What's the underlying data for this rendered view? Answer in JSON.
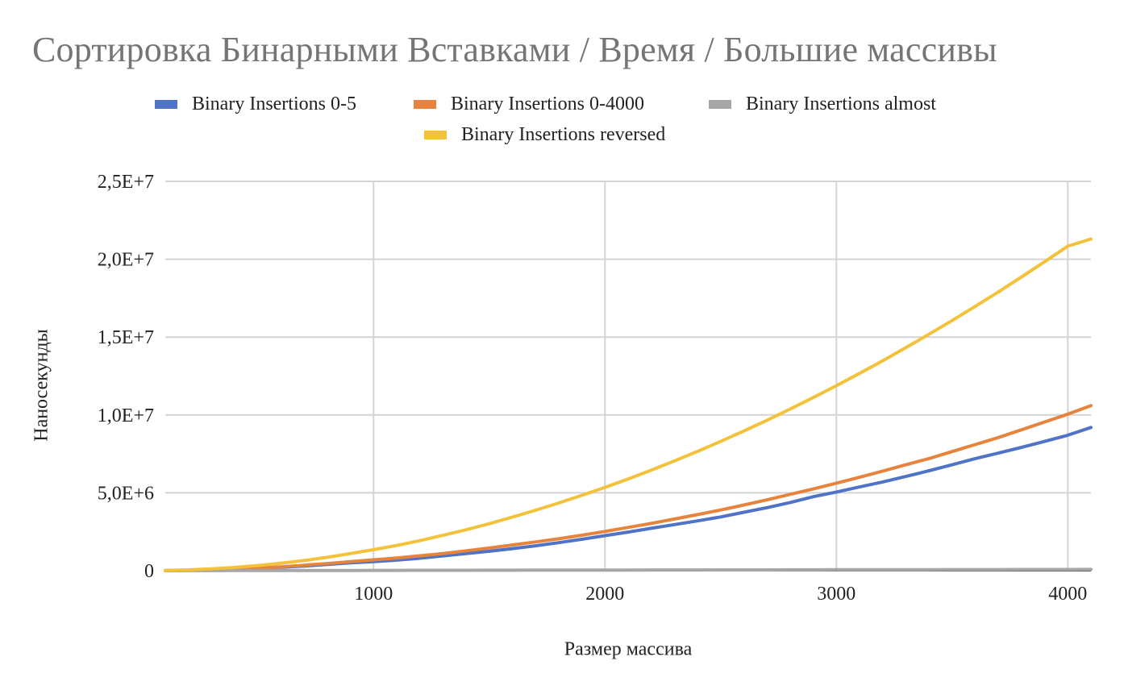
{
  "chart_data": {
    "type": "line",
    "title": "Сортировка Бинарными Вставками / Время / Большие массивы",
    "xlabel": "Размер массива",
    "ylabel": "Наносекунды",
    "xlim": [
      100,
      4100
    ],
    "ylim": [
      0,
      25000000
    ],
    "x_ticks": [
      1000,
      2000,
      3000,
      4000
    ],
    "x_tick_labels": [
      "1000",
      "2000",
      "3000",
      "4000"
    ],
    "y_ticks": [
      0,
      5000000,
      10000000,
      15000000,
      20000000,
      25000000
    ],
    "y_tick_labels": [
      "0",
      "5,0E+6",
      "1,0E+7",
      "1,5E+7",
      "2,0E+7",
      "2,5E+7"
    ],
    "grid": true,
    "legend_position": "top",
    "x": [
      100,
      200,
      300,
      400,
      500,
      600,
      700,
      800,
      900,
      1000,
      1100,
      1200,
      1300,
      1400,
      1500,
      1600,
      1700,
      1800,
      1900,
      2000,
      2100,
      2200,
      2300,
      2400,
      2500,
      2600,
      2700,
      2800,
      2900,
      3000,
      3100,
      3200,
      3300,
      3400,
      3500,
      3600,
      3700,
      3800,
      3900,
      4000,
      4100
    ],
    "series": [
      {
        "name": "Binary Insertions 0-5",
        "color": "#4f73c6",
        "values": [
          5000,
          20000,
          50000,
          100000,
          150000,
          220000,
          300000,
          400000,
          500000,
          580000,
          680000,
          800000,
          950000,
          1100000,
          1250000,
          1420000,
          1600000,
          1800000,
          2020000,
          2250000,
          2480000,
          2720000,
          2960000,
          3200000,
          3450000,
          3750000,
          4050000,
          4380000,
          4750000,
          5050000,
          5380000,
          5700000,
          6050000,
          6420000,
          6800000,
          7200000,
          7550000,
          7920000,
          8300000,
          8700000,
          9200000
        ]
      },
      {
        "name": "Binary Insertions 0-4000",
        "color": "#e6843d",
        "values": [
          5000,
          25000,
          60000,
          110000,
          170000,
          250000,
          350000,
          460000,
          580000,
          700000,
          820000,
          960000,
          1100000,
          1280000,
          1460000,
          1650000,
          1850000,
          2050000,
          2280000,
          2520000,
          2780000,
          3040000,
          3320000,
          3600000,
          3900000,
          4220000,
          4550000,
          4900000,
          5250000,
          5620000,
          6000000,
          6400000,
          6800000,
          7200000,
          7650000,
          8100000,
          8550000,
          9050000,
          9550000,
          10050000,
          10600000
        ]
      },
      {
        "name": "Binary Insertions almost",
        "color": "#a6a6a6",
        "values": [
          2000,
          4000,
          6000,
          8000,
          10000,
          12000,
          14000,
          16000,
          18000,
          20000,
          22000,
          24000,
          26000,
          28000,
          30000,
          32000,
          34000,
          36000,
          38000,
          40000,
          42000,
          44000,
          46000,
          48000,
          50000,
          52000,
          54000,
          56000,
          58000,
          60000,
          62000,
          64000,
          66000,
          68000,
          70000,
          72000,
          74000,
          76000,
          78000,
          80000,
          82000
        ]
      },
      {
        "name": "Binary Insertions reversed",
        "color": "#f4c23a",
        "values": [
          10000,
          50000,
          120000,
          210000,
          330000,
          480000,
          650000,
          860000,
          1100000,
          1350000,
          1620000,
          1930000,
          2270000,
          2630000,
          3020000,
          3440000,
          3880000,
          4350000,
          4840000,
          5350000,
          5890000,
          6460000,
          7050000,
          7660000,
          8300000,
          8970000,
          9660000,
          10380000,
          11120000,
          11880000,
          12670000,
          13480000,
          14320000,
          15180000,
          16060000,
          16970000,
          17900000,
          18860000,
          19840000,
          20840000,
          21300000
        ]
      }
    ]
  }
}
